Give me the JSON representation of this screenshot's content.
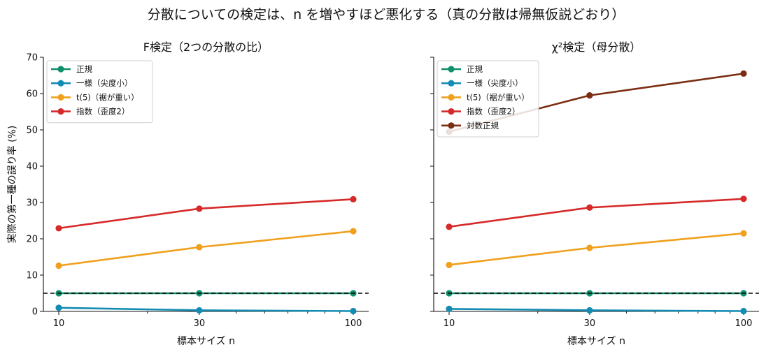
{
  "suptitle": "分散についての検定は、n を増やすほど悪化する（真の分散は帰無仮説どおり）",
  "chart_data": [
    {
      "type": "line",
      "title": "F検定（2つの分散の比）",
      "xlabel": "標本サイズ n",
      "ylabel": "実際の第一種の誤り率 (%)",
      "x": [
        10,
        30,
        100
      ],
      "xscale": "log",
      "x_ticks": [
        "10",
        "30",
        "100"
      ],
      "ylim": [
        0,
        70
      ],
      "y_ticks": [
        "0",
        "10",
        "20",
        "30",
        "40",
        "50",
        "60",
        "70"
      ],
      "reference_line": 5,
      "legend": "upper-left",
      "series": [
        {
          "name": "正規",
          "color": "#0e8f6b",
          "values": [
            5.0,
            5.0,
            5.0
          ]
        },
        {
          "name": "一様（尖度小）",
          "color": "#138cb3",
          "values": [
            1.0,
            0.3,
            0.1
          ]
        },
        {
          "name": "t(5)（裾が重い）",
          "color": "#f0a01c",
          "values": [
            12.6,
            17.7,
            22.1
          ]
        },
        {
          "name": "指数（歪度2）",
          "color": "#d62a2a",
          "values": [
            22.9,
            28.3,
            30.9
          ]
        }
      ]
    },
    {
      "type": "line",
      "title": "χ²検定（母分散）",
      "xlabel": "標本サイズ n",
      "ylabel": "",
      "x": [
        10,
        30,
        100
      ],
      "xscale": "log",
      "x_ticks": [
        "10",
        "30",
        "100"
      ],
      "ylim": [
        0,
        70
      ],
      "y_ticks": [],
      "reference_line": 5,
      "legend": "upper-left",
      "series": [
        {
          "name": "正規",
          "color": "#0e8f6b",
          "values": [
            5.0,
            5.0,
            5.0
          ]
        },
        {
          "name": "一様（尖度小）",
          "color": "#138cb3",
          "values": [
            0.7,
            0.3,
            0.1
          ]
        },
        {
          "name": "t(5)（裾が重い）",
          "color": "#f0a01c",
          "values": [
            12.8,
            17.5,
            21.5
          ]
        },
        {
          "name": "指数（歪度2）",
          "color": "#d62a2a",
          "values": [
            23.3,
            28.6,
            31.0
          ]
        },
        {
          "name": "対数正規",
          "color": "#7b2d12",
          "values": [
            49.5,
            59.5,
            65.5
          ]
        }
      ]
    }
  ]
}
